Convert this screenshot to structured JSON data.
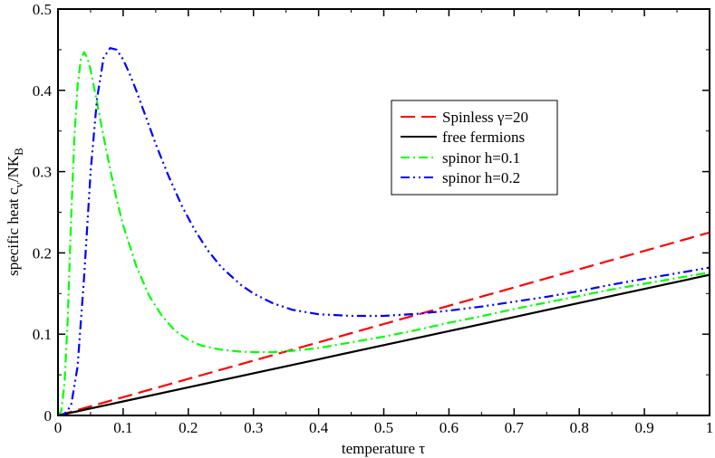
{
  "chart_data": {
    "type": "line",
    "title": "",
    "xlabel": "temperature τ",
    "ylabel": {
      "main": "specific heat c",
      "sub1": "v",
      "mid": "/NK",
      "sub2": "B"
    },
    "xlim": [
      0,
      1
    ],
    "ylim": [
      0,
      0.5
    ],
    "xticks": [
      0,
      0.1,
      0.2,
      0.3,
      0.4,
      0.5,
      0.6,
      0.7,
      0.8,
      0.9,
      1
    ],
    "xtick_labels": [
      "0",
      "0.1",
      "0.2",
      "0.3",
      "0.4",
      "0.5",
      "0.6",
      "0.7",
      "0.8",
      "0.9",
      "1"
    ],
    "yticks": [
      0,
      0.1,
      0.2,
      0.3,
      0.4,
      0.5
    ],
    "ytick_labels": [
      "0",
      "0.1",
      "0.2",
      "0.3",
      "0.4",
      "0.5"
    ],
    "grid": false,
    "legend_position": "center-right",
    "series": [
      {
        "name": "Spinless γ=20",
        "color": "#ff0000",
        "dash": "long-dash",
        "x": [
          0,
          0.1,
          0.2,
          0.3,
          0.4,
          0.5,
          0.6,
          0.7,
          0.8,
          0.9,
          1.0
        ],
        "y": [
          0,
          0.0225,
          0.045,
          0.0675,
          0.09,
          0.1125,
          0.135,
          0.1575,
          0.18,
          0.2025,
          0.225
        ]
      },
      {
        "name": "free fermions",
        "color": "#000000",
        "dash": "solid",
        "x": [
          0,
          0.1,
          0.2,
          0.3,
          0.4,
          0.5,
          0.6,
          0.7,
          0.8,
          0.9,
          1.0
        ],
        "y": [
          0,
          0.0173,
          0.0346,
          0.0519,
          0.0692,
          0.0865,
          0.1038,
          0.1211,
          0.1384,
          0.1557,
          0.173
        ]
      },
      {
        "name": "spinor h=0.1",
        "color": "#00ff00",
        "dash": "dash-dot",
        "x": [
          0,
          0.005,
          0.01,
          0.015,
          0.02,
          0.025,
          0.03,
          0.035,
          0.04,
          0.045,
          0.05,
          0.055,
          0.06,
          0.07,
          0.08,
          0.09,
          0.1,
          0.12,
          0.14,
          0.16,
          0.18,
          0.2,
          0.22,
          0.25,
          0.28,
          0.3,
          0.33,
          0.36,
          0.4,
          0.45,
          0.5,
          0.55,
          0.6,
          0.65,
          0.7,
          0.75,
          0.8,
          0.85,
          0.9,
          0.95,
          1.0
        ],
        "y": [
          0,
          0.005,
          0.04,
          0.12,
          0.24,
          0.34,
          0.405,
          0.438,
          0.447,
          0.44,
          0.425,
          0.405,
          0.385,
          0.343,
          0.303,
          0.266,
          0.234,
          0.184,
          0.147,
          0.122,
          0.104,
          0.093,
          0.086,
          0.081,
          0.0785,
          0.078,
          0.078,
          0.0795,
          0.083,
          0.09,
          0.097,
          0.105,
          0.114,
          0.122,
          0.131,
          0.139,
          0.147,
          0.155,
          0.162,
          0.169,
          0.176
        ]
      },
      {
        "name": "spinor h=0.2",
        "color": "#0000ff",
        "dash": "dash-dot-dot",
        "x": [
          0,
          0.01,
          0.02,
          0.03,
          0.04,
          0.05,
          0.06,
          0.07,
          0.08,
          0.09,
          0.1,
          0.11,
          0.12,
          0.13,
          0.14,
          0.15,
          0.17,
          0.19,
          0.21,
          0.23,
          0.25,
          0.28,
          0.3,
          0.33,
          0.36,
          0.4,
          0.45,
          0.5,
          0.55,
          0.6,
          0.65,
          0.7,
          0.75,
          0.8,
          0.85,
          0.9,
          0.95,
          1.0
        ],
        "y": [
          0,
          0.002,
          0.012,
          0.06,
          0.17,
          0.3,
          0.39,
          0.44,
          0.452,
          0.45,
          0.438,
          0.42,
          0.4,
          0.378,
          0.356,
          0.334,
          0.294,
          0.258,
          0.228,
          0.203,
          0.183,
          0.161,
          0.15,
          0.138,
          0.13,
          0.1245,
          0.1225,
          0.1225,
          0.125,
          0.129,
          0.134,
          0.14,
          0.146,
          0.153,
          0.161,
          0.168,
          0.175,
          0.182
        ]
      }
    ]
  }
}
